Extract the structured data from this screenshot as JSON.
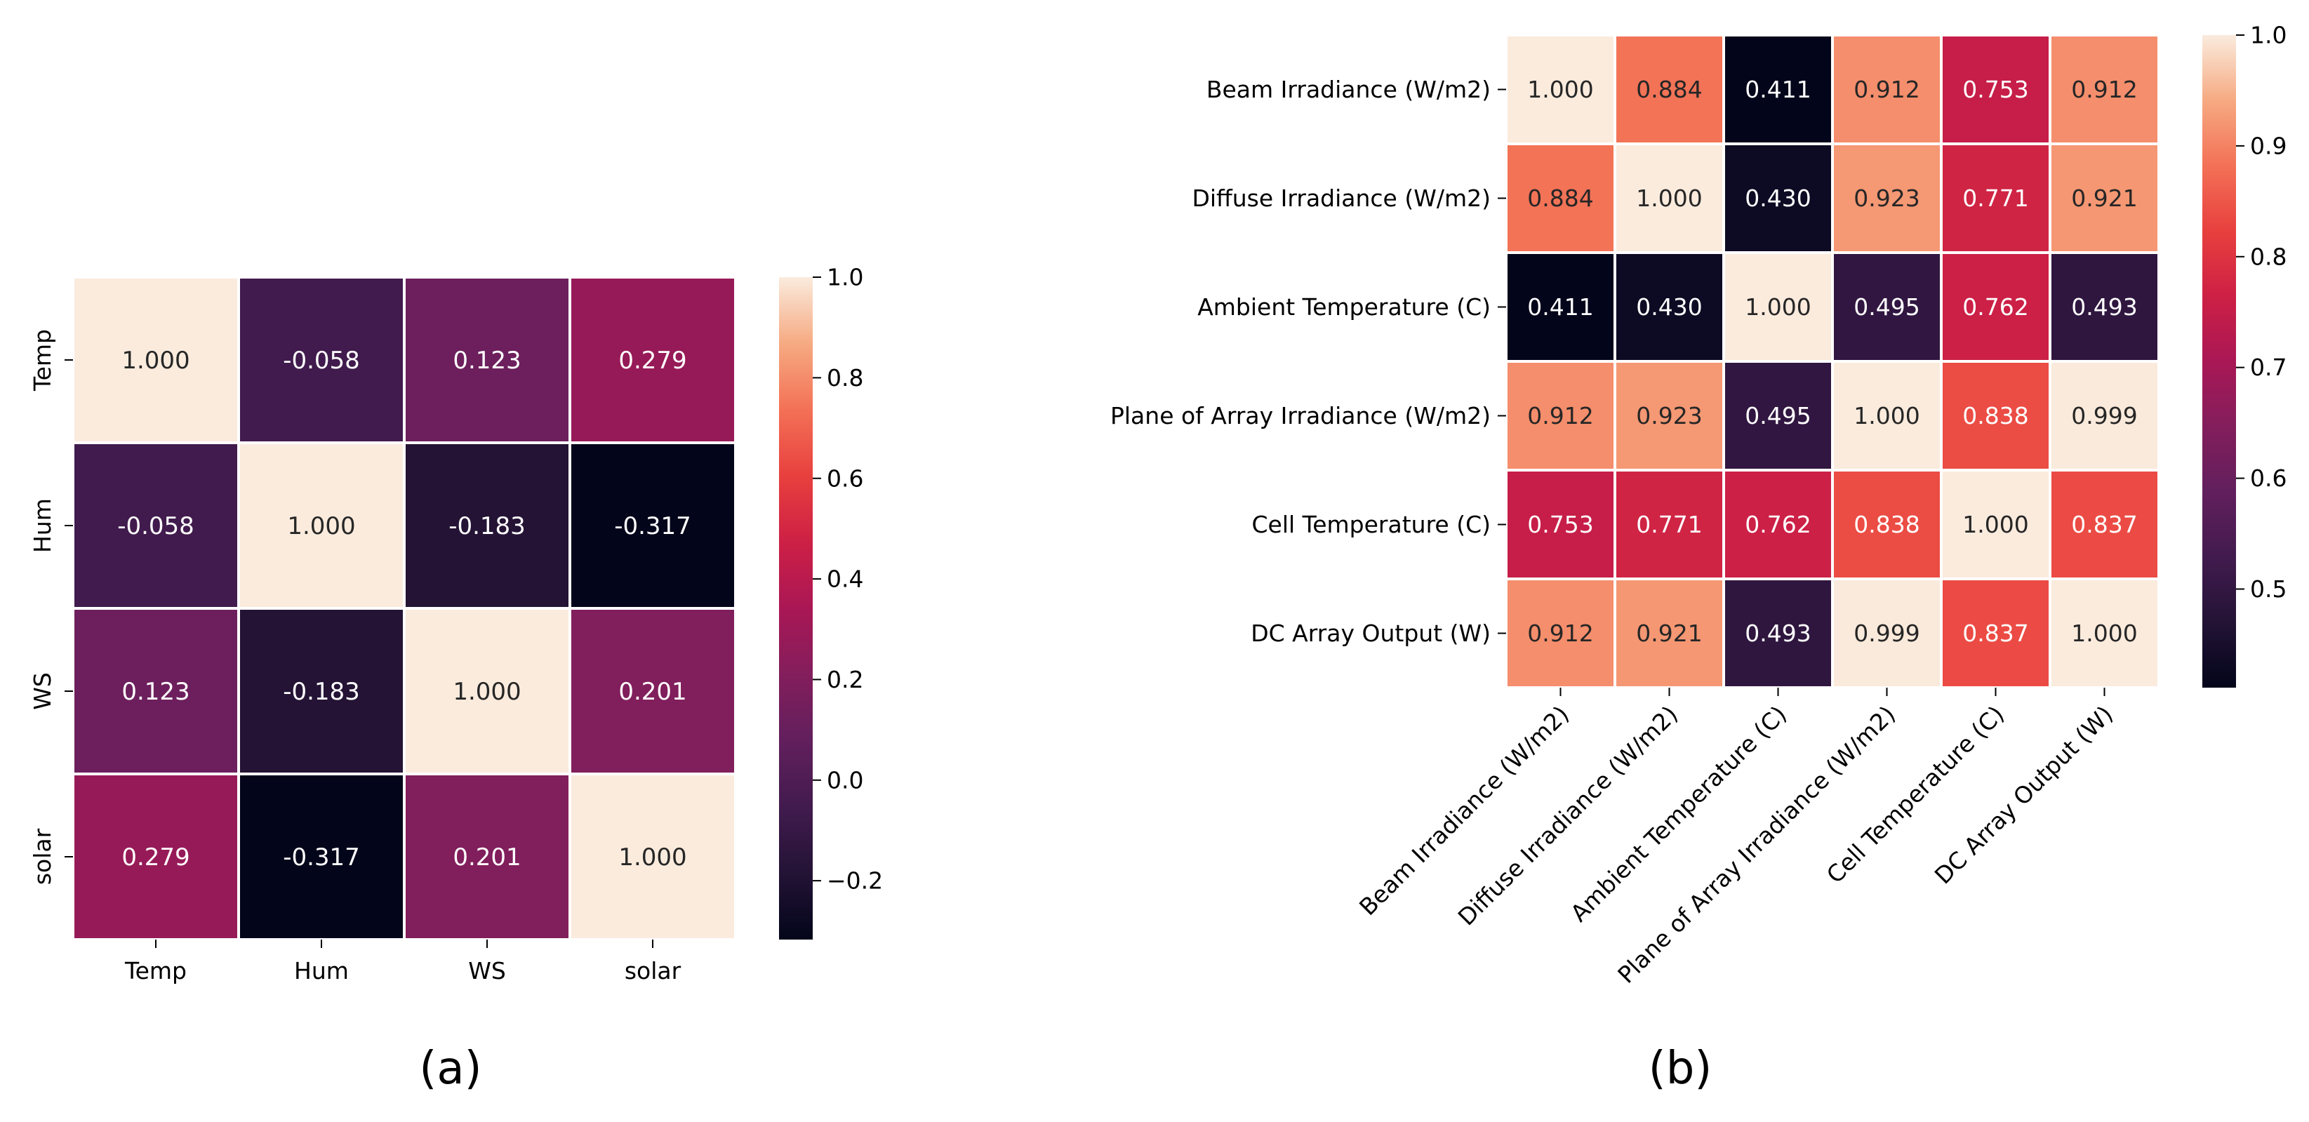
{
  "chart_data": [
    {
      "type": "heatmap",
      "caption": "(a)",
      "row_labels": [
        "Temp",
        "Hum",
        "WS",
        "solar"
      ],
      "col_labels": [
        "Temp",
        "Hum",
        "WS",
        "solar"
      ],
      "values": [
        [
          1.0,
          -0.058,
          0.123,
          0.279
        ],
        [
          -0.058,
          1.0,
          -0.183,
          -0.317
        ],
        [
          0.123,
          -0.183,
          1.0,
          0.201
        ],
        [
          0.279,
          -0.317,
          0.201,
          1.0
        ]
      ],
      "display_values": [
        [
          "1.000",
          "-0.058",
          "0.123",
          "0.279"
        ],
        [
          "-0.058",
          "1.000",
          "-0.183",
          "-0.317"
        ],
        [
          "0.123",
          "-0.183",
          "1.000",
          "0.201"
        ],
        [
          "0.279",
          "-0.317",
          "0.201",
          "1.000"
        ]
      ],
      "vmin": -0.317,
      "vmax": 1.0,
      "colorbar_ticks": [
        1.0,
        0.8,
        0.6,
        0.4,
        0.2,
        0.0,
        -0.2
      ],
      "colorbar_tick_labels": [
        "1.0",
        "0.8",
        "0.6",
        "0.4",
        "0.2",
        "0.0",
        "−0.2"
      ],
      "colormap": "rocket",
      "grid_line_color": "#ffffff"
    },
    {
      "type": "heatmap",
      "caption": "(b)",
      "row_labels": [
        "Beam Irradiance (W/m2)",
        "Diffuse Irradiance (W/m2)",
        "Ambient Temperature (C)",
        "Plane of Array Irradiance (W/m2)",
        "Cell Temperature (C)",
        "DC Array Output (W)"
      ],
      "col_labels": [
        "Beam Irradiance (W/m2)",
        "Diffuse Irradiance (W/m2)",
        "Ambient Temperature (C)",
        "Plane of Array Irradiance (W/m2)",
        "Cell Temperature (C)",
        "DC Array Output (W)"
      ],
      "values": [
        [
          1.0,
          0.884,
          0.411,
          0.912,
          0.753,
          0.912
        ],
        [
          0.884,
          1.0,
          0.43,
          0.923,
          0.771,
          0.921
        ],
        [
          0.411,
          0.43,
          1.0,
          0.495,
          0.762,
          0.493
        ],
        [
          0.912,
          0.923,
          0.495,
          1.0,
          0.838,
          0.999
        ],
        [
          0.753,
          0.771,
          0.762,
          0.838,
          1.0,
          0.837
        ],
        [
          0.912,
          0.921,
          0.493,
          0.999,
          0.837,
          1.0
        ]
      ],
      "display_values": [
        [
          "1.000",
          "0.884",
          "0.411",
          "0.912",
          "0.753",
          "0.912"
        ],
        [
          "0.884",
          "1.000",
          "0.430",
          "0.923",
          "0.771",
          "0.921"
        ],
        [
          "0.411",
          "0.430",
          "1.000",
          "0.495",
          "0.762",
          "0.493"
        ],
        [
          "0.912",
          "0.923",
          "0.495",
          "1.000",
          "0.838",
          "0.999"
        ],
        [
          "0.753",
          "0.771",
          "0.762",
          "0.838",
          "1.000",
          "0.837"
        ],
        [
          "0.912",
          "0.921",
          "0.493",
          "0.999",
          "0.837",
          "1.000"
        ]
      ],
      "vmin": 0.411,
      "vmax": 1.0,
      "colorbar_ticks": [
        1.0,
        0.9,
        0.8,
        0.7,
        0.6,
        0.5
      ],
      "colorbar_tick_labels": [
        "1.0",
        "0.9",
        "0.8",
        "0.7",
        "0.6",
        "0.5"
      ],
      "colormap": "rocket",
      "grid_line_color": "#ffffff"
    }
  ]
}
